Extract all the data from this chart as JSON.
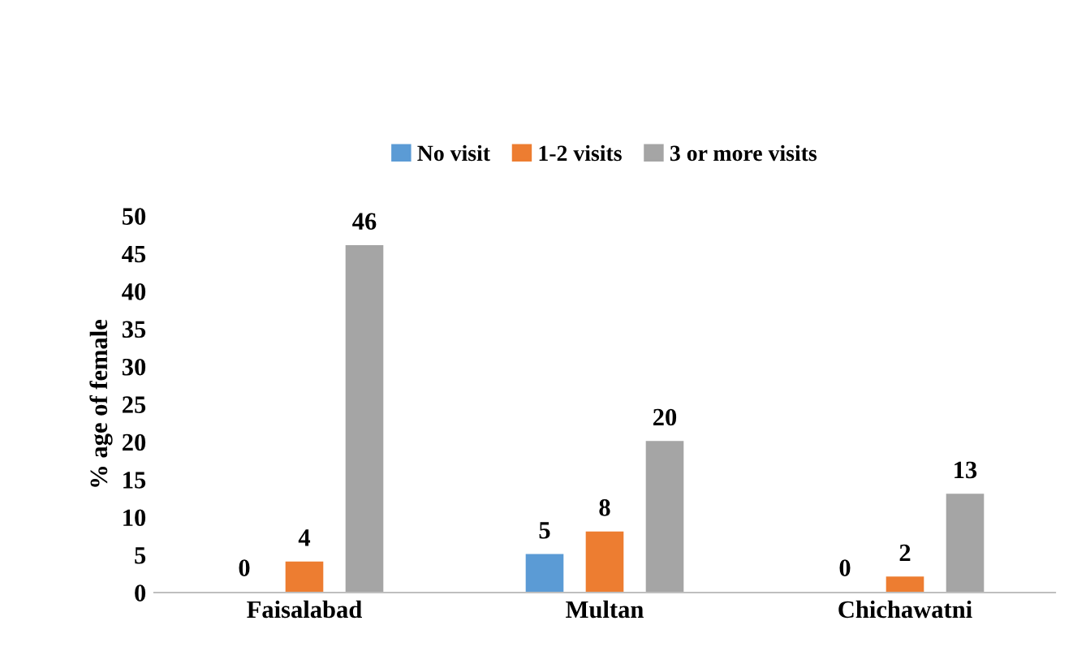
{
  "chart_data": {
    "type": "bar",
    "ylabel": "% age of female",
    "categories": [
      "Faisalabad",
      "Multan",
      "Chichawatni"
    ],
    "series": [
      {
        "name": "No visit",
        "color": "#5b9bd5",
        "values": [
          0,
          5,
          0
        ]
      },
      {
        "name": "1-2 visits",
        "color": "#ed7d31",
        "values": [
          4,
          8,
          2
        ]
      },
      {
        "name": "3 or more visits",
        "color": "#a5a5a5",
        "values": [
          46,
          20,
          13
        ]
      }
    ],
    "ylim": [
      0,
      50
    ],
    "yticks": [
      0,
      5,
      10,
      15,
      20,
      25,
      30,
      35,
      40,
      45,
      50
    ],
    "data_labels": true,
    "legend": "top",
    "grid": false
  }
}
